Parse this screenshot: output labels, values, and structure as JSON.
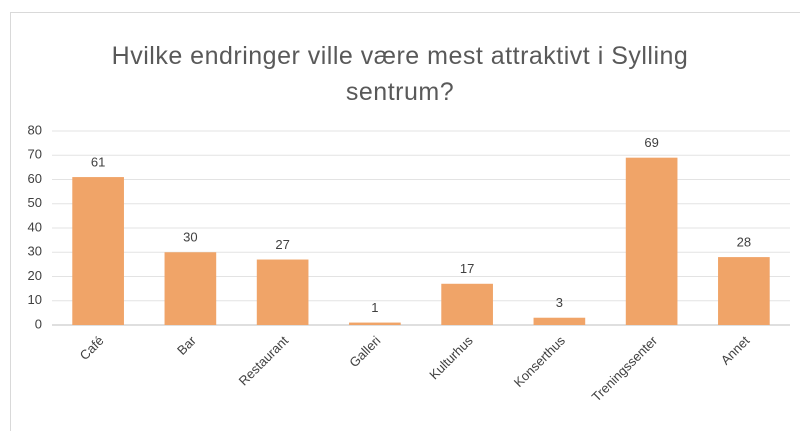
{
  "chart_data": {
    "type": "bar",
    "title": "Hvilke endringer ville være mest attraktivt i Sylling sentrum?",
    "categories": [
      "Café",
      "Bar",
      "Restaurant",
      "Galleri",
      "Kulturhus",
      "Konserthus",
      "Treningssenter",
      "Annet"
    ],
    "values": [
      61,
      30,
      27,
      1,
      17,
      3,
      69,
      28
    ],
    "color": "#f0a468",
    "ylim": [
      0,
      80
    ],
    "yticks": [
      0,
      10,
      20,
      30,
      40,
      50,
      60,
      70,
      80
    ],
    "grid": true
  }
}
